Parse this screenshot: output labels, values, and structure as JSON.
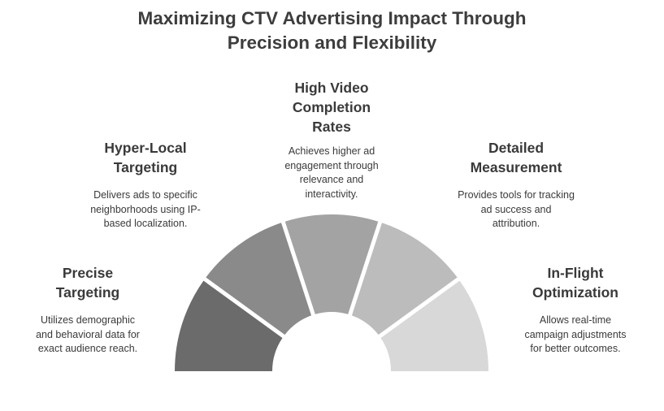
{
  "title": {
    "line1": "Maximizing CTV Advertising Impact Through",
    "line2": "Precision and Flexibility"
  },
  "segments": [
    {
      "heading": [
        "Precise",
        "Targeting"
      ],
      "desc": [
        "Utilizes demographic",
        "and behavioral data for",
        "exact audience reach."
      ],
      "color": "#6b6b6b"
    },
    {
      "heading": [
        "Hyper-Local",
        "Targeting"
      ],
      "desc": [
        "Delivers ads to specific",
        "neighborhoods using IP-",
        "based localization."
      ],
      "color": "#8a8a8a"
    },
    {
      "heading": [
        "High Video",
        "Completion",
        "Rates"
      ],
      "desc": [
        "Achieves higher ad",
        "engagement through",
        "relevance and",
        "interactivity."
      ],
      "color": "#a3a3a3"
    },
    {
      "heading": [
        "Detailed",
        "Measurement"
      ],
      "desc": [
        "Provides tools for tracking",
        "ad success and",
        "attribution."
      ],
      "color": "#bcbcbc"
    },
    {
      "heading": [
        "In-Flight",
        "Optimization"
      ],
      "desc": [
        "Allows real-time",
        "campaign adjustments",
        "for better outcomes."
      ],
      "color": "#d8d8d8"
    }
  ]
}
